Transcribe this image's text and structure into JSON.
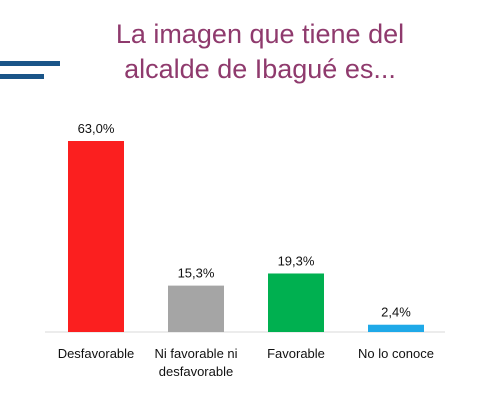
{
  "chart_data": {
    "type": "bar",
    "title_line1": "La imagen que tiene del",
    "title_line2": "alcalde de Ibagué es...",
    "categories": [
      [
        "Desfavorable"
      ],
      [
        "Ni favorable ni",
        "desfavorable"
      ],
      [
        "Favorable"
      ],
      [
        "No lo conoce"
      ]
    ],
    "values": [
      63.0,
      15.3,
      19.3,
      2.4
    ],
    "value_labels": [
      "63,0%",
      "15,3%",
      "19,3%",
      "2,4%"
    ],
    "colors": [
      "#fb1f1f",
      "#a5a5a5",
      "#00b050",
      "#1fa9e8"
    ],
    "ylim": [
      0,
      63
    ],
    "grid": false,
    "xlabel": "",
    "ylabel": ""
  },
  "decoration": {
    "accent_color": "#1a5588"
  }
}
